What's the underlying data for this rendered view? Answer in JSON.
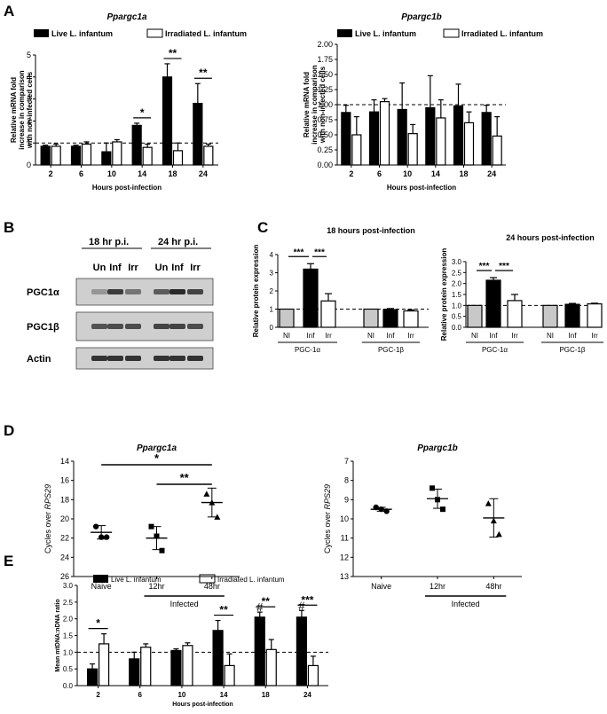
{
  "panel_labels": [
    "A",
    "B",
    "C",
    "D",
    "E"
  ],
  "legend": {
    "live": "Live L. infantum",
    "irr": "Irradiated L. infantum"
  },
  "colors": {
    "black": "#000000",
    "white": "#ffffff",
    "grey": "#c8c8c8",
    "gel_bg": "#cfcfcf",
    "band": "#2a2a2a"
  },
  "chart_data": [
    {
      "id": "A1",
      "type": "bar",
      "title": "Ppargc1a",
      "xlabel": "Hours post-infection",
      "ylabel": "Relative mRNA fold increase in comparison with non-infected cells",
      "categories": [
        "2",
        "6",
        "10",
        "14",
        "18",
        "24"
      ],
      "ylim": [
        0,
        5
      ],
      "yticks": [
        0,
        1,
        2,
        3,
        4,
        5
      ],
      "reference": 1,
      "series": [
        {
          "name": "Live L. infantum",
          "values": [
            0.85,
            0.85,
            0.6,
            1.8,
            4.0,
            2.8
          ],
          "errors": [
            0.05,
            0.05,
            0.4,
            0.1,
            0.6,
            0.9
          ]
        },
        {
          "name": "Irradiated L. infantum",
          "values": [
            0.85,
            0.95,
            1.05,
            0.8,
            0.65,
            0.85
          ],
          "errors": [
            0.1,
            0.1,
            0.1,
            0.15,
            0.35,
            0.1
          ]
        }
      ],
      "significance": [
        {
          "cat": 3,
          "label": "*"
        },
        {
          "cat": 4,
          "label": "**"
        },
        {
          "cat": 5,
          "label": "**"
        }
      ]
    },
    {
      "id": "A2",
      "type": "bar",
      "title": "Ppargc1b",
      "xlabel": "Hours post-infection",
      "ylabel": "Relative mRNA fold increase in comparison with non-infected cells",
      "categories": [
        "2",
        "6",
        "10",
        "14",
        "18",
        "24"
      ],
      "ylim": [
        0,
        2
      ],
      "yticks": [
        "0.00",
        "0.25",
        "0.50",
        "0.75",
        "1.00",
        "1.25",
        "1.50",
        "1.75",
        "2.00"
      ],
      "reference": 1,
      "series": [
        {
          "name": "Live L. infantum",
          "values": [
            0.87,
            0.88,
            0.92,
            0.95,
            0.98,
            0.87
          ],
          "errors": [
            0.12,
            0.2,
            0.44,
            0.53,
            0.36,
            0.12
          ]
        },
        {
          "name": "Irradiated L. infantum",
          "values": [
            0.5,
            1.05,
            0.52,
            0.78,
            0.7,
            0.48
          ],
          "errors": [
            0.3,
            0.05,
            0.15,
            0.3,
            0.18,
            0.32
          ]
        }
      ],
      "significance": []
    },
    {
      "id": "C1",
      "type": "bar",
      "title": "18 hours post-infection",
      "ylabel": "Relative protein expression",
      "categories": [
        "NI",
        "Inf",
        "Irr",
        "NI",
        "Inf",
        "Irr"
      ],
      "groups": [
        "PGC-1α",
        "PGC-1β"
      ],
      "ylim": [
        0,
        4
      ],
      "yticks": [
        0,
        1,
        2,
        3,
        4
      ],
      "reference": 1,
      "values": [
        1.0,
        3.2,
        1.45,
        1.0,
        0.97,
        0.9
      ],
      "errors": [
        0,
        0.3,
        0.4,
        0,
        0.06,
        0.06
      ],
      "fills": [
        "grey",
        "black",
        "white",
        "grey",
        "black",
        "white"
      ],
      "significance": [
        {
          "from": 0,
          "to": 1,
          "label": "***"
        },
        {
          "from": 1,
          "to": 2,
          "label": "***"
        }
      ]
    },
    {
      "id": "C2",
      "type": "bar",
      "title": "24 hours post-infection",
      "ylabel": "Relative protein expression",
      "categories": [
        "NI",
        "Inf",
        "Irr",
        "NI",
        "Inf",
        "Irr"
      ],
      "groups": [
        "PGC-1α",
        "PGC-1β"
      ],
      "ylim": [
        0,
        3
      ],
      "yticks": [
        "0.0",
        "0.5",
        "1.0",
        "1.5",
        "2.0",
        "2.5",
        "3.0"
      ],
      "reference": 1,
      "values": [
        1.0,
        2.15,
        1.22,
        1.0,
        1.05,
        1.07
      ],
      "errors": [
        0,
        0.12,
        0.28,
        0,
        0.04,
        0.03
      ],
      "fills": [
        "grey",
        "black",
        "white",
        "grey",
        "black",
        "white"
      ],
      "significance": [
        {
          "from": 0,
          "to": 1,
          "label": "***"
        },
        {
          "from": 1,
          "to": 2,
          "label": "***"
        }
      ]
    },
    {
      "id": "D1",
      "type": "scatter",
      "title": "Ppargc1a",
      "ylabel": "Cycles over RPS29",
      "categories": [
        "Naive",
        "12hr",
        "48hr"
      ],
      "group_label": "Infected",
      "ylim": [
        26,
        14
      ],
      "yticks": [
        14,
        16,
        18,
        20,
        22,
        24,
        26
      ],
      "inverted": true,
      "groups": [
        {
          "points": [
            20.8,
            21.9,
            21.9
          ],
          "mean": 21.4,
          "err": 0.7
        },
        {
          "points": [
            20.8,
            21.8,
            23.3
          ],
          "mean": 22.0,
          "err": 1.2
        },
        {
          "points": [
            17.4,
            18.3,
            19.8
          ],
          "mean": 18.3,
          "err": 1.5
        }
      ],
      "significance": [
        {
          "from": 0,
          "to": 2,
          "label": "*"
        },
        {
          "from": 1,
          "to": 2,
          "label": "**"
        }
      ]
    },
    {
      "id": "D2",
      "type": "scatter",
      "title": "Ppargc1b",
      "ylabel": "Cycles over RPS29",
      "categories": [
        "Naive",
        "12hr",
        "48hr"
      ],
      "group_label": "Infected",
      "ylim": [
        13,
        7
      ],
      "yticks": [
        7,
        8,
        9,
        10,
        11,
        12,
        13
      ],
      "inverted": true,
      "groups": [
        {
          "points": [
            9.4,
            9.5,
            9.6
          ],
          "mean": 9.5,
          "err": 0.1
        },
        {
          "points": [
            8.4,
            9.0,
            9.5
          ],
          "mean": 8.95,
          "err": 0.5
        },
        {
          "points": [
            9.2,
            10.1,
            10.8
          ],
          "mean": 9.95,
          "err": 1.0
        }
      ],
      "significance": []
    },
    {
      "id": "E",
      "type": "bar",
      "xlabel": "Hours post-infection",
      "ylabel": "Mean mtDNA:nDNA ratio",
      "categories": [
        "2",
        "6",
        "10",
        "14",
        "18",
        "24"
      ],
      "ylim": [
        0,
        3
      ],
      "yticks": [
        "0.0",
        "0.5",
        "1.0",
        "1.5",
        "2.0",
        "2.5",
        "3.0"
      ],
      "reference": 1,
      "series": [
        {
          "name": "Live L. infantum",
          "values": [
            0.5,
            0.8,
            1.05,
            1.65,
            2.05,
            2.05
          ],
          "errors": [
            0.15,
            0.2,
            0.05,
            0.3,
            0.15,
            0.2
          ]
        },
        {
          "name": "Irradiated L. infantum",
          "values": [
            1.25,
            1.15,
            1.2,
            0.6,
            1.08,
            0.6
          ],
          "errors": [
            0.3,
            0.1,
            0.08,
            0.35,
            0.3,
            0.28
          ]
        }
      ],
      "significance": [
        {
          "cat": 0,
          "label": "*"
        },
        {
          "cat": 3,
          "label": "**"
        },
        {
          "cat": 4,
          "label": "**"
        },
        {
          "cat": 5,
          "label": "***"
        }
      ],
      "hash_marks": [
        {
          "cat": 4,
          "label": "#"
        },
        {
          "cat": 5,
          "label": "#"
        }
      ]
    }
  ],
  "blot": {
    "time_labels": [
      "18 hr p.i.",
      "24 hr p.i."
    ],
    "lane_labels": [
      "Un",
      "Inf",
      "Irr",
      "Un",
      "Inf",
      "Irr"
    ],
    "rows": [
      {
        "label": "PGC1α",
        "intensity": [
          0.35,
          0.9,
          0.55,
          0.7,
          1.0,
          0.85
        ]
      },
      {
        "label": "PGC1β",
        "intensity": [
          0.75,
          0.8,
          0.8,
          0.85,
          0.85,
          0.8
        ]
      },
      {
        "label": "Actin",
        "intensity": [
          0.95,
          0.95,
          0.95,
          0.95,
          0.95,
          0.95
        ]
      }
    ]
  }
}
